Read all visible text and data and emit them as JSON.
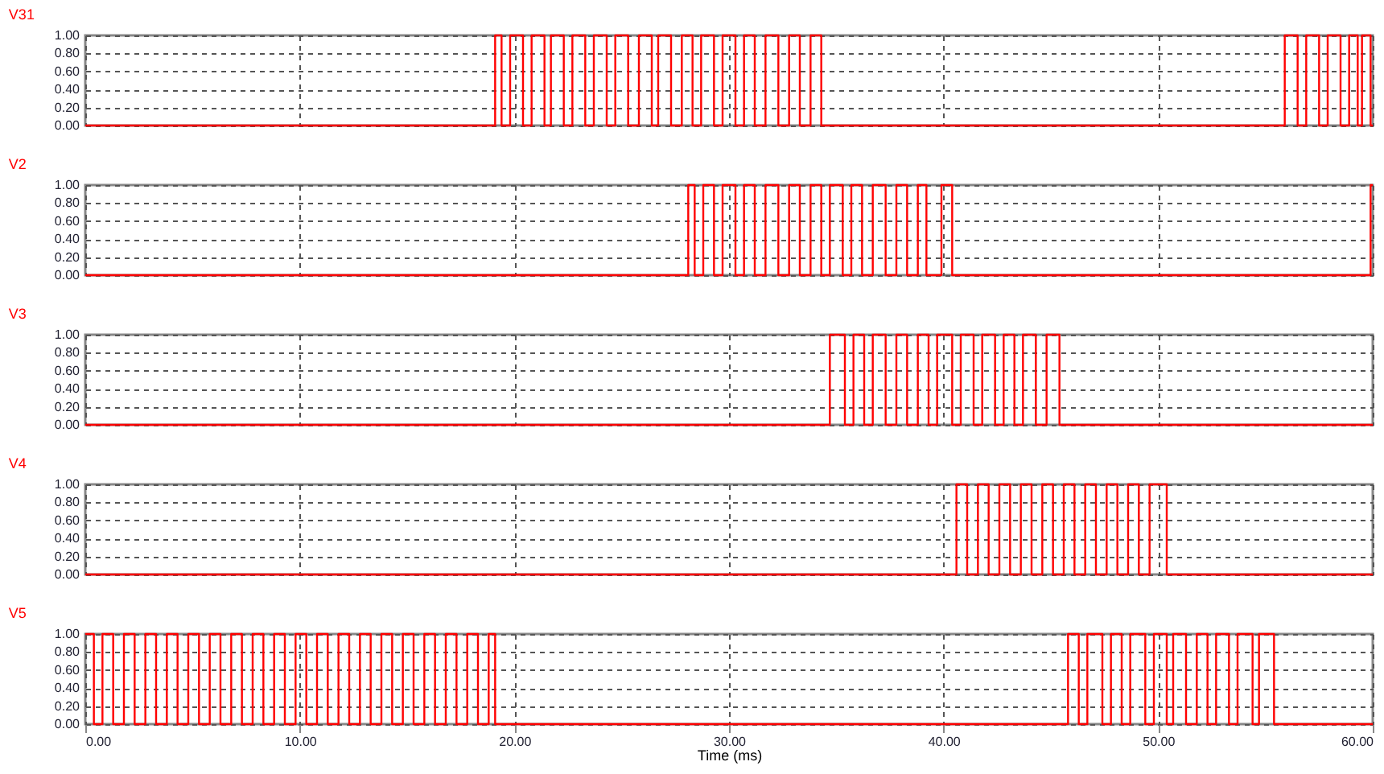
{
  "chart_data": [
    {
      "type": "step",
      "title": "V31",
      "xlim": [
        0,
        60
      ],
      "xticks": [
        {
          "value": 0,
          "label": null
        },
        {
          "value": 10,
          "label": null
        },
        {
          "value": 20,
          "label": null
        },
        {
          "value": 30,
          "label": null
        },
        {
          "value": 40,
          "label": null
        },
        {
          "value": 50,
          "label": null
        },
        {
          "value": 60,
          "label": null
        }
      ],
      "ylim": [
        0,
        1
      ],
      "yticks": [
        {
          "value": 0,
          "label": "0.00"
        },
        {
          "value": 0.2,
          "label": "0.20"
        },
        {
          "value": 0.4,
          "label": "0.40"
        },
        {
          "value": 0.6,
          "label": "0.60"
        },
        {
          "value": 0.8,
          "label": "0.80"
        },
        {
          "value": 1,
          "label": "1.00"
        }
      ],
      "grid": true,
      "tick_labels": "y",
      "x": [
        0,
        19.1,
        19.4,
        19.8,
        20.4,
        20.8,
        21.4,
        21.7,
        22.3,
        22.7,
        23.3,
        23.7,
        24.3,
        24.7,
        25.3,
        25.8,
        26.4,
        26.7,
        27.3,
        27.8,
        28.3,
        28.7,
        29.3,
        29.7,
        30.3,
        30.7,
        31.2,
        31.7,
        32.3,
        32.8,
        33.3,
        33.8,
        34.3,
        55.9,
        56.5,
        56.9,
        57.5,
        57.9,
        58.5,
        58.9,
        59.3,
        59.5,
        59.9,
        60
      ],
      "series": [
        {
          "color": "#ff0000",
          "values": [
            0,
            1,
            0,
            1,
            0,
            1,
            0,
            1,
            0,
            1,
            0,
            1,
            0,
            1,
            0,
            1,
            0,
            1,
            0,
            1,
            0,
            1,
            0,
            1,
            0,
            1,
            0,
            1,
            0,
            1,
            0,
            1,
            0,
            1,
            0,
            1,
            0,
            1,
            0,
            1,
            0,
            1,
            0,
            0
          ]
        }
      ]
    },
    {
      "type": "step",
      "title": "V2",
      "xlim": [
        0,
        60
      ],
      "xticks": [
        {
          "value": 0,
          "label": null
        },
        {
          "value": 10,
          "label": null
        },
        {
          "value": 20,
          "label": null
        },
        {
          "value": 30,
          "label": null
        },
        {
          "value": 40,
          "label": null
        },
        {
          "value": 50,
          "label": null
        },
        {
          "value": 60,
          "label": null
        }
      ],
      "ylim": [
        0,
        1
      ],
      "yticks": [
        {
          "value": 0,
          "label": "0.00"
        },
        {
          "value": 0.2,
          "label": "0.20"
        },
        {
          "value": 0.4,
          "label": "0.40"
        },
        {
          "value": 0.6,
          "label": "0.60"
        },
        {
          "value": 0.8,
          "label": "0.80"
        },
        {
          "value": 1,
          "label": "1.00"
        }
      ],
      "grid": true,
      "tick_labels": "y",
      "x": [
        0,
        28.1,
        28.4,
        28.8,
        29.3,
        29.7,
        30.3,
        30.7,
        31.2,
        31.7,
        32.3,
        32.8,
        33.3,
        33.8,
        34.3,
        34.7,
        35.3,
        35.7,
        36.2,
        36.7,
        37.3,
        37.8,
        38.3,
        38.8,
        39.2,
        39.9,
        40.4,
        59.9,
        60
      ],
      "series": [
        {
          "color": "#ff0000",
          "values": [
            0,
            1,
            0,
            1,
            0,
            1,
            0,
            1,
            0,
            1,
            0,
            1,
            0,
            1,
            0,
            1,
            0,
            1,
            0,
            1,
            0,
            1,
            0,
            1,
            0,
            1,
            0,
            1,
            1
          ]
        }
      ]
    },
    {
      "type": "step",
      "title": "V3",
      "xlim": [
        0,
        60
      ],
      "xticks": [
        {
          "value": 0,
          "label": null
        },
        {
          "value": 10,
          "label": null
        },
        {
          "value": 20,
          "label": null
        },
        {
          "value": 30,
          "label": null
        },
        {
          "value": 40,
          "label": null
        },
        {
          "value": 50,
          "label": null
        },
        {
          "value": 60,
          "label": null
        }
      ],
      "ylim": [
        0,
        1
      ],
      "yticks": [
        {
          "value": 0,
          "label": "0.00"
        },
        {
          "value": 0.2,
          "label": "0.20"
        },
        {
          "value": 0.4,
          "label": "0.40"
        },
        {
          "value": 0.6,
          "label": "0.60"
        },
        {
          "value": 0.8,
          "label": "0.80"
        },
        {
          "value": 1,
          "label": "1.00"
        }
      ],
      "grid": true,
      "tick_labels": "y",
      "x": [
        0,
        34.7,
        35.4,
        35.8,
        36.3,
        36.7,
        37.3,
        37.8,
        38.3,
        38.8,
        39.3,
        39.7,
        40.4,
        40.8,
        41.4,
        41.8,
        42.4,
        42.8,
        43.3,
        43.7,
        44.3,
        44.8,
        45.4,
        60
      ],
      "series": [
        {
          "color": "#ff0000",
          "values": [
            0,
            1,
            0,
            1,
            0,
            1,
            0,
            1,
            0,
            1,
            0,
            1,
            0,
            1,
            0,
            1,
            0,
            1,
            0,
            1,
            0,
            1,
            0,
            0
          ]
        }
      ]
    },
    {
      "type": "step",
      "title": "V4",
      "xlim": [
        0,
        60
      ],
      "xticks": [
        {
          "value": 0,
          "label": null
        },
        {
          "value": 10,
          "label": null
        },
        {
          "value": 20,
          "label": null
        },
        {
          "value": 30,
          "label": null
        },
        {
          "value": 40,
          "label": null
        },
        {
          "value": 50,
          "label": null
        },
        {
          "value": 60,
          "label": null
        }
      ],
      "ylim": [
        0,
        1
      ],
      "yticks": [
        {
          "value": 0,
          "label": "0.00"
        },
        {
          "value": 0.2,
          "label": "0.20"
        },
        {
          "value": 0.4,
          "label": "0.40"
        },
        {
          "value": 0.6,
          "label": "0.60"
        },
        {
          "value": 0.8,
          "label": "0.80"
        },
        {
          "value": 1,
          "label": "1.00"
        }
      ],
      "grid": true,
      "tick_labels": "y",
      "x": [
        0,
        40.6,
        41.1,
        41.6,
        42.1,
        42.6,
        43.1,
        43.6,
        44.1,
        44.6,
        45.1,
        45.6,
        46.1,
        46.6,
        47.1,
        47.6,
        48.1,
        48.6,
        49.1,
        49.6,
        50.4,
        60
      ],
      "series": [
        {
          "color": "#ff0000",
          "values": [
            0,
            1,
            0,
            1,
            0,
            1,
            0,
            1,
            0,
            1,
            0,
            1,
            0,
            1,
            0,
            1,
            0,
            1,
            0,
            1,
            0,
            0
          ]
        }
      ]
    },
    {
      "type": "step",
      "title": "V5",
      "xlabel": "Time (ms)",
      "xlim": [
        0,
        60
      ],
      "xticks": [
        {
          "value": 0,
          "label": "0.00"
        },
        {
          "value": 10,
          "label": "10.00"
        },
        {
          "value": 20,
          "label": "20.00"
        },
        {
          "value": 30,
          "label": "30.00"
        },
        {
          "value": 40,
          "label": "40.00"
        },
        {
          "value": 50,
          "label": "50.00"
        },
        {
          "value": 60,
          "label": "60.00"
        }
      ],
      "ylim": [
        0,
        1
      ],
      "yticks": [
        {
          "value": 0,
          "label": "0.00"
        },
        {
          "value": 0.2,
          "label": "0.20"
        },
        {
          "value": 0.4,
          "label": "0.40"
        },
        {
          "value": 0.6,
          "label": "0.60"
        },
        {
          "value": 0.8,
          "label": "0.80"
        },
        {
          "value": 1,
          "label": "1.00"
        }
      ],
      "grid": true,
      "x": [
        0,
        0.4,
        0.8,
        1.3,
        1.8,
        2.3,
        2.8,
        3.3,
        3.8,
        4.3,
        4.8,
        5.3,
        5.8,
        6.3,
        6.8,
        7.3,
        7.8,
        8.3,
        8.8,
        9.3,
        9.8,
        10.3,
        10.8,
        11.3,
        11.8,
        12.3,
        12.8,
        13.3,
        13.8,
        14.3,
        14.8,
        15.3,
        15.8,
        16.3,
        16.8,
        17.3,
        17.8,
        18.3,
        18.8,
        19.1,
        45.8,
        46.3,
        46.7,
        47.4,
        47.8,
        48.3,
        48.7,
        49.4,
        49.8,
        50.4,
        50.7,
        51.3,
        51.8,
        52.3,
        52.7,
        53.3,
        53.7,
        54.4,
        54.7,
        55.4,
        60
      ],
      "series": [
        {
          "color": "#ff0000",
          "values": [
            1,
            0,
            1,
            0,
            1,
            0,
            1,
            0,
            1,
            0,
            1,
            0,
            1,
            0,
            1,
            0,
            1,
            0,
            1,
            0,
            1,
            0,
            1,
            0,
            1,
            0,
            1,
            0,
            1,
            0,
            1,
            0,
            1,
            0,
            1,
            0,
            1,
            0,
            1,
            0,
            1,
            0,
            1,
            0,
            1,
            0,
            1,
            0,
            1,
            0,
            1,
            0,
            1,
            0,
            1,
            0,
            1,
            0,
            1,
            0,
            0
          ]
        }
      ]
    }
  ]
}
